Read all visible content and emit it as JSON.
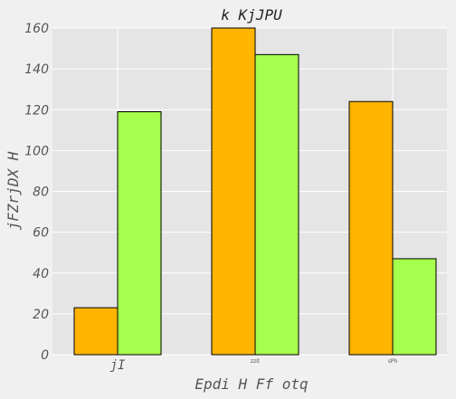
{
  "chart_data": {
    "type": "bar",
    "title": "k KjJPU",
    "xlabel": "Epdi H Ff otq",
    "ylabel": "jFZrjDX H",
    "categories": [
      "jI",
      "zzit",
      "sPh"
    ],
    "series": [
      {
        "values": [
          23,
          160,
          124
        ],
        "color": "#ffb400"
      },
      {
        "values": [
          119,
          147,
          47
        ],
        "color": "#a6ff4d"
      }
    ],
    "ylim": [
      0,
      160
    ],
    "yticks": [
      0,
      20,
      40,
      60,
      80,
      100,
      120,
      140,
      160
    ],
    "grid": true,
    "legend": "none"
  }
}
